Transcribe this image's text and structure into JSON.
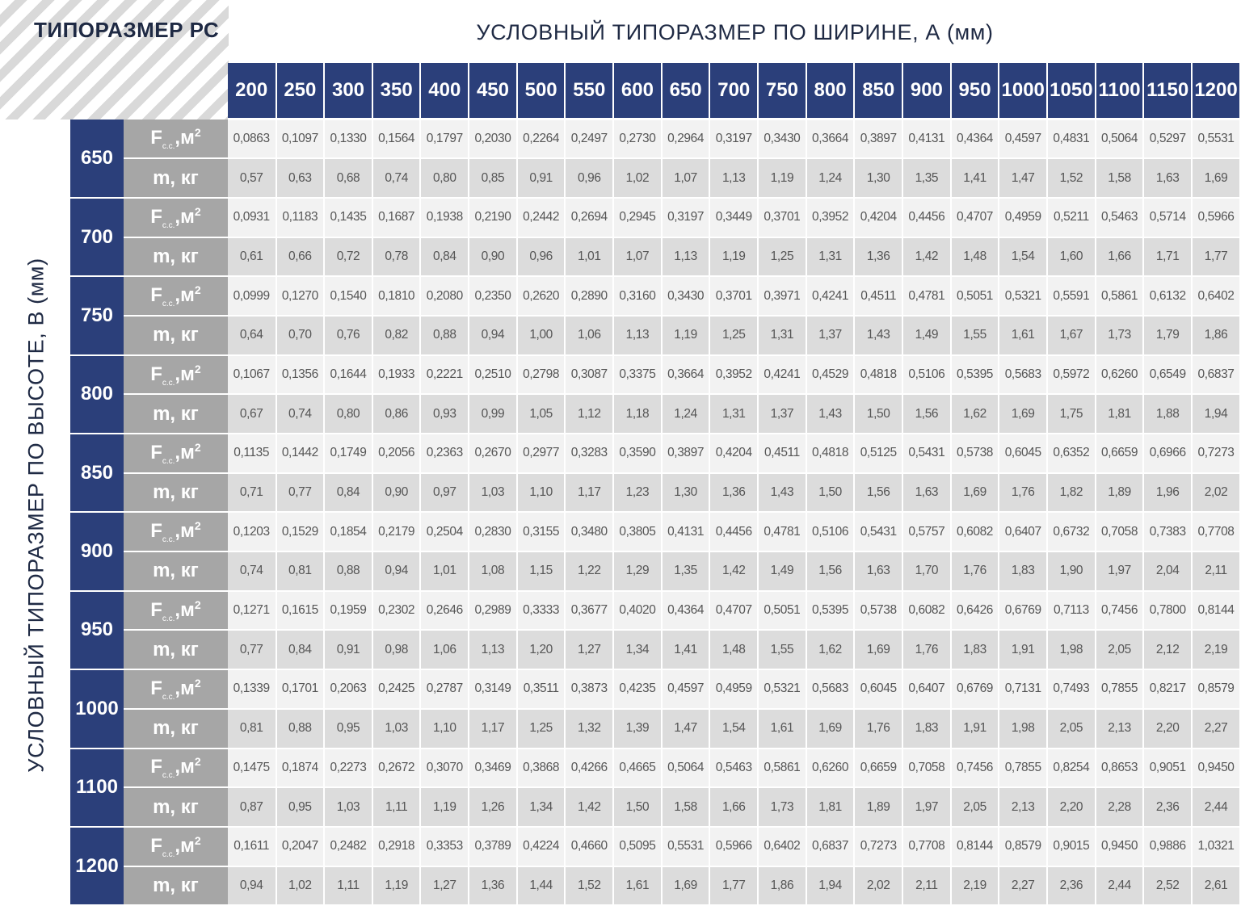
{
  "corner_title": "ТИПОРАЗМЕР РС",
  "top_title": "УСЛОВНЫЙ ТИПОРАЗМЕР ПО ШИРИНЕ, А (мм)",
  "side_title": "УСЛОВНЫЙ ТИПОРАЗМЕР ПО ВЫСОТЕ, В (мм)",
  "row_labels": {
    "f_main": "F",
    "f_sub": "с.с.",
    "f_unit": ",м",
    "f_sup": "2",
    "m": "m, кг"
  },
  "widths": [
    "200",
    "250",
    "300",
    "350",
    "400",
    "450",
    "500",
    "550",
    "600",
    "650",
    "700",
    "750",
    "800",
    "850",
    "900",
    "950",
    "1000",
    "1050",
    "1100",
    "1150",
    "1200"
  ],
  "heights": [
    {
      "b": "650",
      "f": [
        "0,0863",
        "0,1097",
        "0,1330",
        "0,1564",
        "0,1797",
        "0,2030",
        "0,2264",
        "0,2497",
        "0,2730",
        "0,2964",
        "0,3197",
        "0,3430",
        "0,3664",
        "0,3897",
        "0,4131",
        "0,4364",
        "0,4597",
        "0,4831",
        "0,5064",
        "0,5297",
        "0,5531"
      ],
      "m": [
        "0,57",
        "0,63",
        "0,68",
        "0,74",
        "0,80",
        "0,85",
        "0,91",
        "0,96",
        "1,02",
        "1,07",
        "1,13",
        "1,19",
        "1,24",
        "1,30",
        "1,35",
        "1,41",
        "1,47",
        "1,52",
        "1,58",
        "1,63",
        "1,69"
      ]
    },
    {
      "b": "700",
      "f": [
        "0,0931",
        "0,1183",
        "0,1435",
        "0,1687",
        "0,1938",
        "0,2190",
        "0,2442",
        "0,2694",
        "0,2945",
        "0,3197",
        "0,3449",
        "0,3701",
        "0,3952",
        "0,4204",
        "0,4456",
        "0,4707",
        "0,4959",
        "0,5211",
        "0,5463",
        "0,5714",
        "0,5966"
      ],
      "m": [
        "0,61",
        "0,66",
        "0,72",
        "0,78",
        "0,84",
        "0,90",
        "0,96",
        "1,01",
        "1,07",
        "1,13",
        "1,19",
        "1,25",
        "1,31",
        "1,36",
        "1,42",
        "1,48",
        "1,54",
        "1,60",
        "1,66",
        "1,71",
        "1,77"
      ]
    },
    {
      "b": "750",
      "f": [
        "0,0999",
        "0,1270",
        "0,1540",
        "0,1810",
        "0,2080",
        "0,2350",
        "0,2620",
        "0,2890",
        "0,3160",
        "0,3430",
        "0,3701",
        "0,3971",
        "0,4241",
        "0,4511",
        "0,4781",
        "0,5051",
        "0,5321",
        "0,5591",
        "0,5861",
        "0,6132",
        "0,6402"
      ],
      "m": [
        "0,64",
        "0,70",
        "0,76",
        "0,82",
        "0,88",
        "0,94",
        "1,00",
        "1,06",
        "1,13",
        "1,19",
        "1,25",
        "1,31",
        "1,37",
        "1,43",
        "1,49",
        "1,55",
        "1,61",
        "1,67",
        "1,73",
        "1,79",
        "1,86"
      ]
    },
    {
      "b": "800",
      "f": [
        "0,1067",
        "0,1356",
        "0,1644",
        "0,1933",
        "0,2221",
        "0,2510",
        "0,2798",
        "0,3087",
        "0,3375",
        "0,3664",
        "0,3952",
        "0,4241",
        "0,4529",
        "0,4818",
        "0,5106",
        "0,5395",
        "0,5683",
        "0,5972",
        "0,6260",
        "0,6549",
        "0,6837"
      ],
      "m": [
        "0,67",
        "0,74",
        "0,80",
        "0,86",
        "0,93",
        "0,99",
        "1,05",
        "1,12",
        "1,18",
        "1,24",
        "1,31",
        "1,37",
        "1,43",
        "1,50",
        "1,56",
        "1,62",
        "1,69",
        "1,75",
        "1,81",
        "1,88",
        "1,94"
      ]
    },
    {
      "b": "850",
      "f": [
        "0,1135",
        "0,1442",
        "0,1749",
        "0,2056",
        "0,2363",
        "0,2670",
        "0,2977",
        "0,3283",
        "0,3590",
        "0,3897",
        "0,4204",
        "0,4511",
        "0,4818",
        "0,5125",
        "0,5431",
        "0,5738",
        "0,6045",
        "0,6352",
        "0,6659",
        "0,6966",
        "0,7273"
      ],
      "m": [
        "0,71",
        "0,77",
        "0,84",
        "0,90",
        "0,97",
        "1,03",
        "1,10",
        "1,17",
        "1,23",
        "1,30",
        "1,36",
        "1,43",
        "1,50",
        "1,56",
        "1,63",
        "1,69",
        "1,76",
        "1,82",
        "1,89",
        "1,96",
        "2,02"
      ]
    },
    {
      "b": "900",
      "f": [
        "0,1203",
        "0,1529",
        "0,1854",
        "0,2179",
        "0,2504",
        "0,2830",
        "0,3155",
        "0,3480",
        "0,3805",
        "0,4131",
        "0,4456",
        "0,4781",
        "0,5106",
        "0,5431",
        "0,5757",
        "0,6082",
        "0,6407",
        "0,6732",
        "0,7058",
        "0,7383",
        "0,7708"
      ],
      "m": [
        "0,74",
        "0,81",
        "0,88",
        "0,94",
        "1,01",
        "1,08",
        "1,15",
        "1,22",
        "1,29",
        "1,35",
        "1,42",
        "1,49",
        "1,56",
        "1,63",
        "1,70",
        "1,76",
        "1,83",
        "1,90",
        "1,97",
        "2,04",
        "2,11"
      ]
    },
    {
      "b": "950",
      "f": [
        "0,1271",
        "0,1615",
        "0,1959",
        "0,2302",
        "0,2646",
        "0,2989",
        "0,3333",
        "0,3677",
        "0,4020",
        "0,4364",
        "0,4707",
        "0,5051",
        "0,5395",
        "0,5738",
        "0,6082",
        "0,6426",
        "0,6769",
        "0,7113",
        "0,7456",
        "0,7800",
        "0,8144"
      ],
      "m": [
        "0,77",
        "0,84",
        "0,91",
        "0,98",
        "1,06",
        "1,13",
        "1,20",
        "1,27",
        "1,34",
        "1,41",
        "1,48",
        "1,55",
        "1,62",
        "1,69",
        "1,76",
        "1,83",
        "1,91",
        "1,98",
        "2,05",
        "2,12",
        "2,19"
      ]
    },
    {
      "b": "1000",
      "f": [
        "0,1339",
        "0,1701",
        "0,2063",
        "0,2425",
        "0,2787",
        "0,3149",
        "0,3511",
        "0,3873",
        "0,4235",
        "0,4597",
        "0,4959",
        "0,5321",
        "0,5683",
        "0,6045",
        "0,6407",
        "0,6769",
        "0,7131",
        "0,7493",
        "0,7855",
        "0,8217",
        "0,8579"
      ],
      "m": [
        "0,81",
        "0,88",
        "0,95",
        "1,03",
        "1,10",
        "1,17",
        "1,25",
        "1,32",
        "1,39",
        "1,47",
        "1,54",
        "1,61",
        "1,69",
        "1,76",
        "1,83",
        "1,91",
        "1,98",
        "2,05",
        "2,13",
        "2,20",
        "2,27"
      ]
    },
    {
      "b": "1100",
      "f": [
        "0,1475",
        "0,1874",
        "0,2273",
        "0,2672",
        "0,3070",
        "0,3469",
        "0,3868",
        "0,4266",
        "0,4665",
        "0,5064",
        "0,5463",
        "0,5861",
        "0,6260",
        "0,6659",
        "0,7058",
        "0,7456",
        "0,7855",
        "0,8254",
        "0,8653",
        "0,9051",
        "0,9450"
      ],
      "m": [
        "0,87",
        "0,95",
        "1,03",
        "1,11",
        "1,19",
        "1,26",
        "1,34",
        "1,42",
        "1,50",
        "1,58",
        "1,66",
        "1,73",
        "1,81",
        "1,89",
        "1,97",
        "2,05",
        "2,13",
        "2,20",
        "2,28",
        "2,36",
        "2,44"
      ]
    },
    {
      "b": "1200",
      "f": [
        "0,1611",
        "0,2047",
        "0,2482",
        "0,2918",
        "0,3353",
        "0,3789",
        "0,4224",
        "0,4660",
        "0,5095",
        "0,5531",
        "0,5966",
        "0,6402",
        "0,6837",
        "0,7273",
        "0,7708",
        "0,8144",
        "0,8579",
        "0,9015",
        "0,9450",
        "0,9886",
        "1,0321"
      ],
      "m": [
        "0,94",
        "1,02",
        "1,11",
        "1,19",
        "1,27",
        "1,36",
        "1,44",
        "1,52",
        "1,61",
        "1,69",
        "1,77",
        "1,86",
        "1,94",
        "2,02",
        "2,11",
        "2,19",
        "2,27",
        "2,36",
        "2,44",
        "2,52",
        "2,61"
      ]
    }
  ]
}
